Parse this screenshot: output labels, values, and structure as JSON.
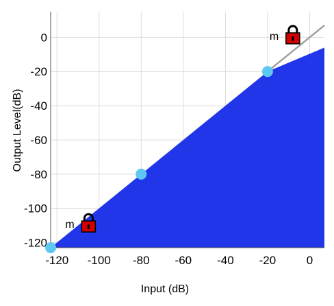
{
  "chart_data": {
    "type": "area",
    "title": "",
    "xlabel": "Input (dB)",
    "ylabel": "Output Level(dB)",
    "xlim": [
      -123,
      7
    ],
    "ylim": [
      -123,
      15
    ],
    "x_ticks": [
      -120,
      -100,
      -80,
      -60,
      -40,
      -20,
      0
    ],
    "y_ticks": [
      -120,
      -100,
      -80,
      -60,
      -40,
      -20,
      0
    ],
    "grid": true,
    "fill_color": "#2036e8",
    "reference_line_color": "#a0a0a0",
    "series": [
      {
        "x": [
          -123,
          -20,
          7
        ],
        "y": [
          -123,
          -20,
          -6
        ]
      }
    ],
    "reference_line": {
      "x": [
        -20,
        7
      ],
      "y": [
        -20,
        7
      ]
    },
    "control_points": [
      {
        "x": -123,
        "y": -123
      },
      {
        "x": -80,
        "y": -80
      },
      {
        "x": -20,
        "y": -20
      }
    ],
    "point_color": "#5ec7f2",
    "locks": [
      {
        "label": "m",
        "x": -105,
        "y": -109,
        "icon": "lock-icon"
      },
      {
        "label": "m",
        "x": -8,
        "y": 1,
        "icon": "lock-icon"
      }
    ],
    "lock_color": "#d40000"
  }
}
